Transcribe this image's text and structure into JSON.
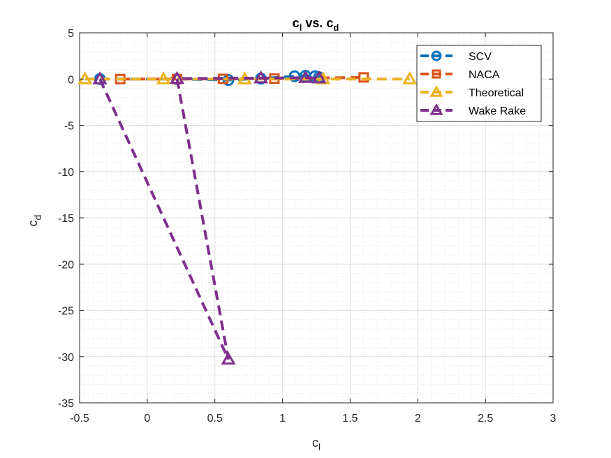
{
  "chart_data": {
    "type": "line",
    "title": {
      "base": "c",
      "sub": "l",
      "mid": " vs. c",
      "sub2": "d"
    },
    "xlabel": {
      "base": "c",
      "sub": "l"
    },
    "ylabel": {
      "base": "c",
      "sub": "d"
    },
    "xlim": [
      -0.5,
      3
    ],
    "ylim": [
      -35,
      5
    ],
    "xticks": [
      -0.5,
      0,
      0.5,
      1,
      1.5,
      2,
      2.5,
      3
    ],
    "xtick_labels": [
      "-0.5",
      "0",
      "0.5",
      "1",
      "1.5",
      "2",
      "2.5",
      "3"
    ],
    "yticks": [
      -35,
      -30,
      -25,
      -20,
      -15,
      -10,
      -5,
      0,
      5
    ],
    "ytick_labels": [
      "-35",
      "-30",
      "-25",
      "-20",
      "-15",
      "-10",
      "-5",
      "0",
      "5"
    ],
    "grid": true,
    "minor_grid": true,
    "legend_position": "top-right",
    "series": [
      {
        "name": "SCV",
        "color": "#0072BD",
        "marker": "circle",
        "x": [
          -0.35,
          0.22,
          0.6,
          0.84,
          1.09,
          1.17,
          1.24,
          1.27
        ],
        "y": [
          0,
          0,
          -0.1,
          0.05,
          0.3,
          0.35,
          0.3,
          0.2
        ]
      },
      {
        "name": "NACA",
        "color": "#D95319",
        "marker": "square",
        "x": [
          -0.2,
          0.22,
          0.56,
          0.94,
          1.6
        ],
        "y": [
          0,
          0,
          0.02,
          0.05,
          0.18
        ]
      },
      {
        "name": "Theoretical",
        "color": "#EDB120",
        "marker": "triangle",
        "x": [
          -0.46,
          0.12,
          0.72,
          1.3,
          1.94
        ],
        "y": [
          0,
          0,
          0,
          0,
          0
        ]
      },
      {
        "name": "Wake Rake",
        "color": "#7E2F8E",
        "marker": "triangle",
        "x": [
          -0.35,
          0.6,
          0.22,
          0.84,
          1.17,
          1.27
        ],
        "y": [
          0,
          -30.3,
          0.05,
          0.1,
          0.15,
          0.1
        ]
      }
    ]
  }
}
